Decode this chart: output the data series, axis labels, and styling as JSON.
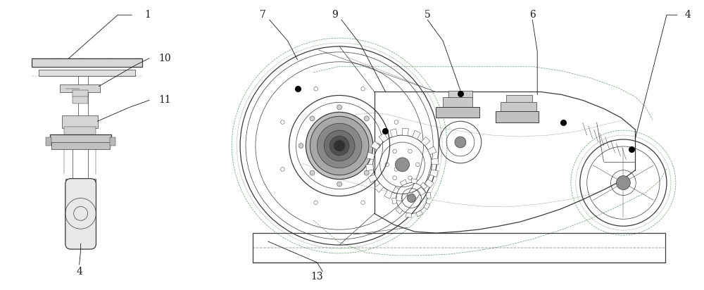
{
  "bg_color": "#ffffff",
  "line_color": "#3a3a3a",
  "dashed_color": "#6a9a6a",
  "label_color": "#1a1a1a",
  "figsize": [
    10.0,
    4.12
  ],
  "dpi": 100
}
